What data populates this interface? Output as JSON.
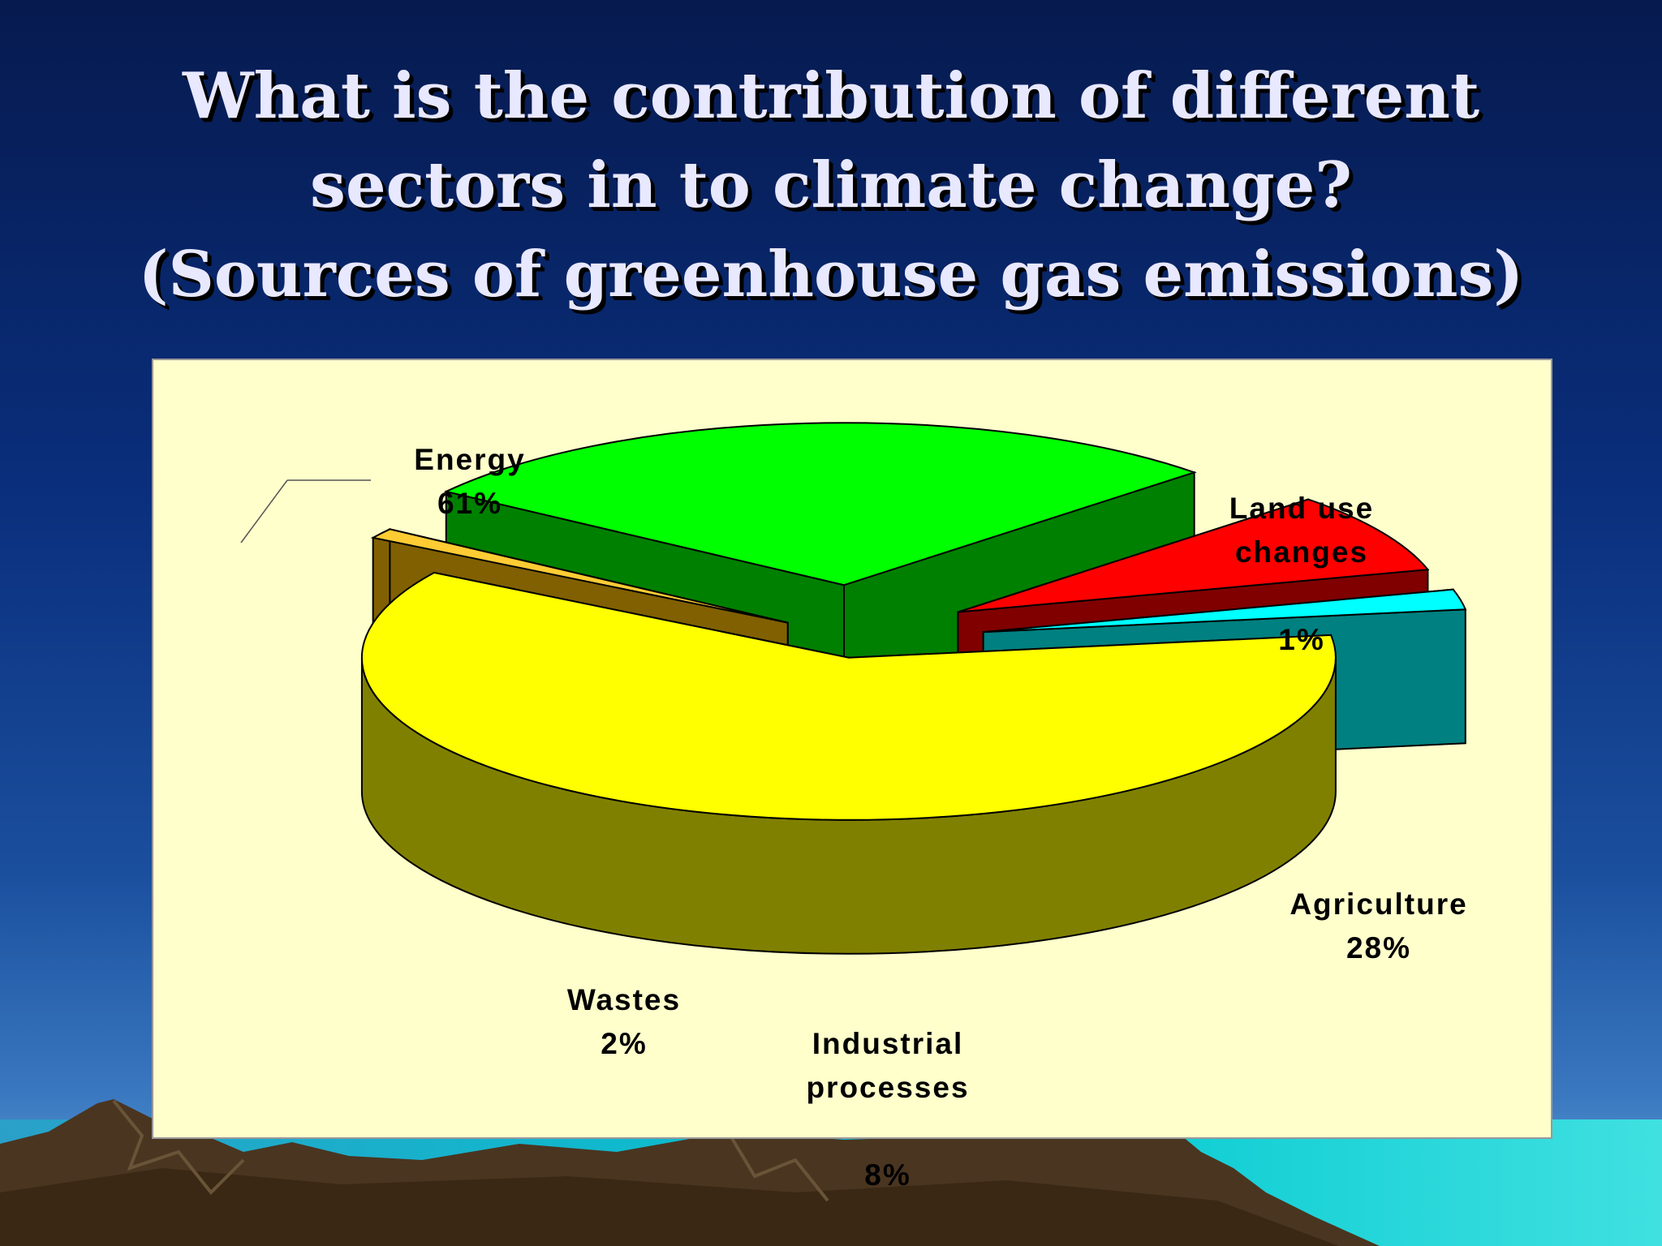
{
  "slide": {
    "title_lines": [
      "What is the contribution of different",
      "sectors in to climate change?",
      "(Sources of greenhouse gas emissions)"
    ]
  },
  "chart_data": {
    "type": "pie",
    "style": "3d-exploded",
    "slices": [
      {
        "label": "Energy",
        "pct_label": "61%",
        "value": 61,
        "color": "#ffff00",
        "side_color": "#808000"
      },
      {
        "label": "Land use\nchanges",
        "pct_label": "1%",
        "value": 1,
        "color": "#ffcc33",
        "side_color": "#806000"
      },
      {
        "label": "Agriculture",
        "pct_label": "28%",
        "value": 28,
        "color": "#00ff00",
        "side_color": "#008000"
      },
      {
        "label": "Industrial\nprocesses",
        "pct_label": "8%",
        "value": 8,
        "color": "#ff0000",
        "side_color": "#800000"
      },
      {
        "label": "Wastes",
        "pct_label": "2%",
        "value": 2,
        "color": "#00ffff",
        "side_color": "#008080"
      }
    ],
    "background": "#ffffcc"
  }
}
